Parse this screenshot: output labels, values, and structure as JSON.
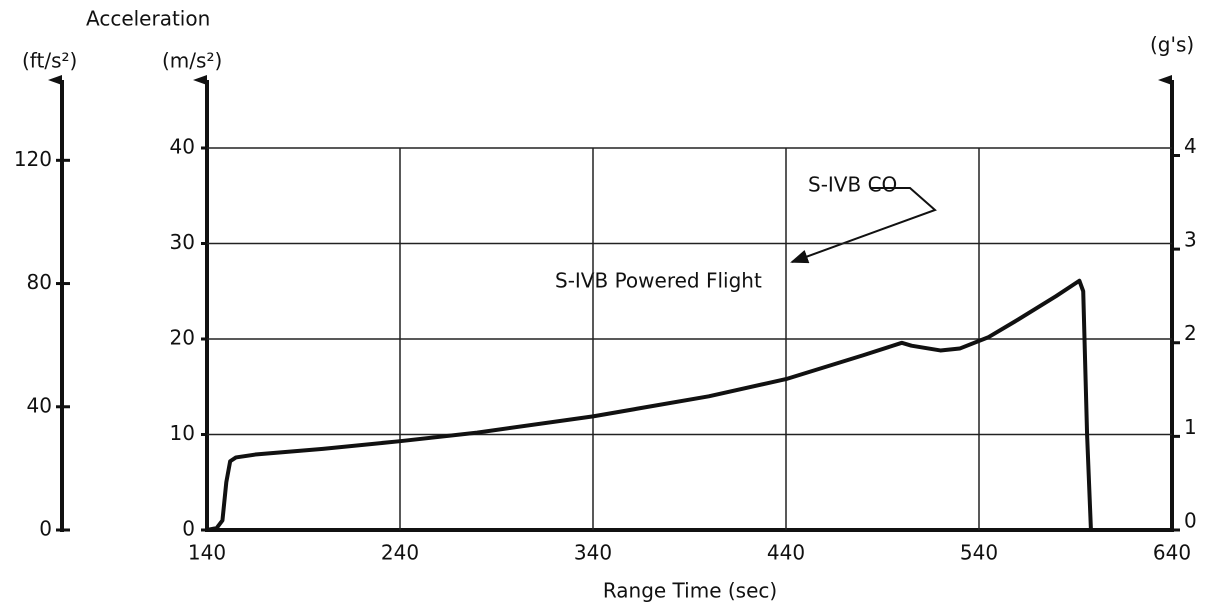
{
  "chart_data": {
    "type": "line",
    "title": "Acceleration",
    "ylabel": "(m/s²)",
    "y_ft_label": "(ft/s²)",
    "y2label": "(g's)",
    "xlabel": "Range Time (sec)",
    "annotations": [
      "S-IVB Powered Flight",
      "S-IVB CO"
    ],
    "x": [
      140,
      145,
      148,
      150,
      152,
      155,
      165,
      200,
      240,
      280,
      340,
      400,
      440,
      480,
      500,
      505,
      520,
      530,
      545,
      560,
      580,
      592,
      594,
      596,
      598
    ],
    "series": [
      {
        "name": "Acceleration",
        "color": "#111111",
        "values": [
          0,
          0.2,
          1,
          5,
          7.2,
          7.6,
          7.9,
          8.5,
          9.3,
          10.2,
          11.9,
          14,
          15.8,
          18.3,
          19.6,
          19.3,
          18.8,
          19.0,
          20.2,
          22,
          24.5,
          26.1,
          25,
          10,
          0
        ]
      }
    ],
    "xlim": [
      140,
      640
    ],
    "xticks": [
      140,
      240,
      340,
      440,
      540,
      640
    ],
    "ylim": [
      0,
      40
    ],
    "yticks": [
      0,
      10,
      20,
      30,
      40
    ],
    "y_ft_lim": [
      0,
      124
    ],
    "y_ft_ticks": [
      0,
      40,
      80,
      120
    ],
    "y2lim": [
      0,
      4.08
    ],
    "y2ticks": [
      0,
      1,
      2,
      3,
      4
    ],
    "grid": true
  }
}
